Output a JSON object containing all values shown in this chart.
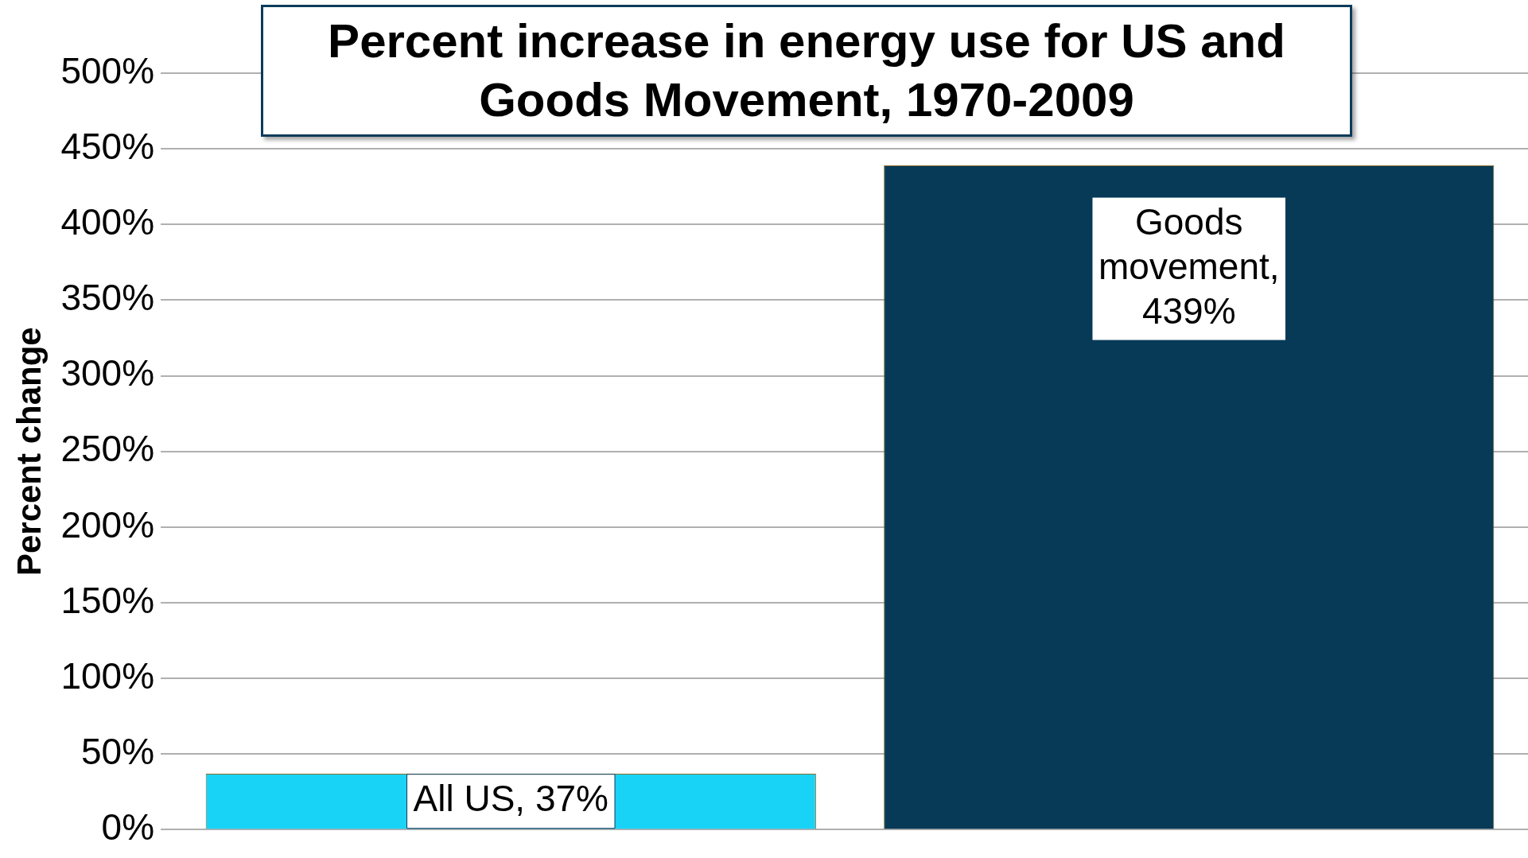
{
  "chart_data": {
    "type": "bar",
    "title": "Percent increase in energy use for US and Goods Movement, 1970-2009",
    "ylabel": "Percent change",
    "categories": [
      null,
      null
    ],
    "values": [
      37,
      439
    ],
    "colors": [
      "#19d3f7",
      "#063a57"
    ],
    "value_labels": [
      "All US, 37%",
      "Goods movement, 439%"
    ],
    "ylim": [
      0,
      500
    ],
    "yticks": [
      {
        "value": 0,
        "label": "0%"
      },
      {
        "value": 50,
        "label": "50%"
      },
      {
        "value": 100,
        "label": "100%"
      },
      {
        "value": 150,
        "label": "150%"
      },
      {
        "value": 200,
        "label": "200%"
      },
      {
        "value": 250,
        "label": "250%"
      },
      {
        "value": 300,
        "label": "300%"
      },
      {
        "value": 350,
        "label": "350%"
      },
      {
        "value": 400,
        "label": "400%"
      },
      {
        "value": 450,
        "label": "450%"
      },
      {
        "value": 500,
        "label": "500%"
      }
    ],
    "grid": "y",
    "legend": false
  }
}
